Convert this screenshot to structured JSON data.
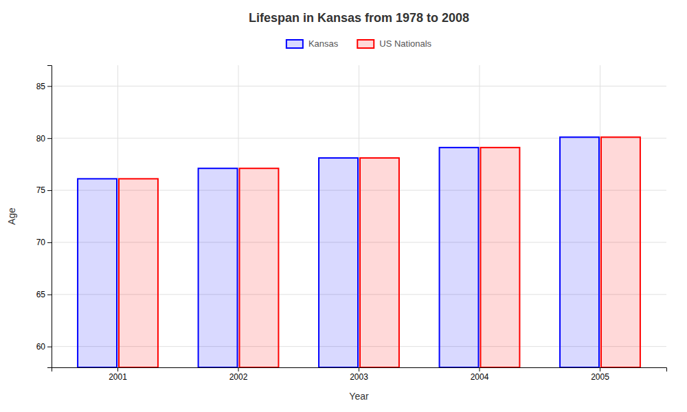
{
  "chart_data": {
    "type": "bar",
    "title": "Lifespan in Kansas from 1978 to 2008",
    "xlabel": "Year",
    "ylabel": "Age",
    "categories": [
      "2001",
      "2002",
      "2003",
      "2004",
      "2005"
    ],
    "series": [
      {
        "name": "Kansas",
        "color": "#0000ff",
        "values": [
          76.1,
          77.1,
          78.1,
          79.1,
          80.1
        ]
      },
      {
        "name": "US Nationals",
        "color": "#ff0000",
        "values": [
          76.1,
          77.1,
          78.1,
          79.1,
          80.1
        ]
      }
    ],
    "ylim": [
      58,
      87
    ],
    "yticks": [
      60,
      65,
      70,
      75,
      80,
      85
    ],
    "grid": true,
    "legend": "top"
  }
}
